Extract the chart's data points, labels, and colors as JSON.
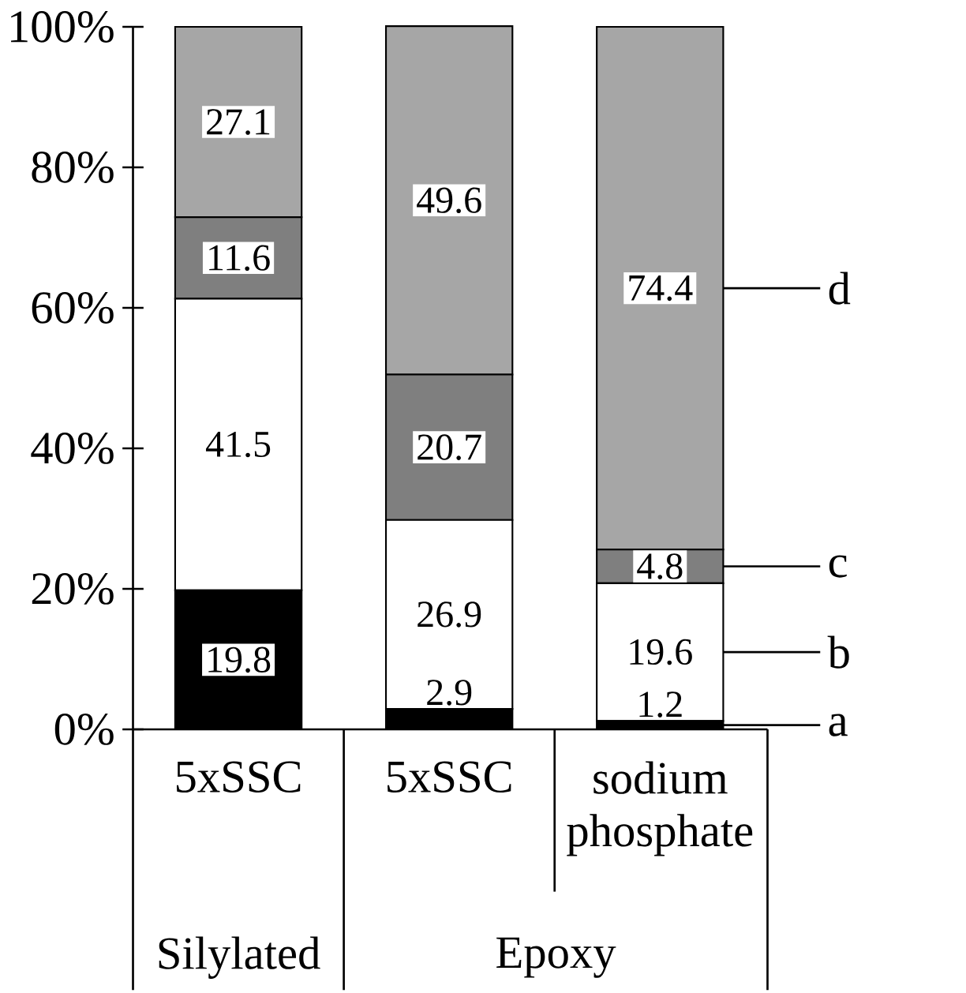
{
  "chart_data": {
    "type": "bar",
    "stacked": true,
    "data_labels": true,
    "categories": [
      "5xSSC",
      "5xSSC",
      "sodium phosphate"
    ],
    "series": [
      {
        "name": "a",
        "color": "#000000",
        "values": [
          19.8,
          2.9,
          1.2
        ]
      },
      {
        "name": "b",
        "color": "#ffffff",
        "values": [
          41.5,
          26.9,
          19.6
        ]
      },
      {
        "name": "c",
        "color": "#7f7f7f",
        "values": [
          11.6,
          20.7,
          4.8
        ]
      },
      {
        "name": "d",
        "color": "#a6a6a6",
        "values": [
          27.1,
          49.6,
          74.4
        ]
      }
    ],
    "ylim": [
      0,
      100
    ],
    "yticks": [
      {
        "value": 0,
        "label": "0%"
      },
      {
        "value": 20,
        "label": "20%"
      },
      {
        "value": 40,
        "label": "40%"
      },
      {
        "value": 60,
        "label": "60%"
      },
      {
        "value": 80,
        "label": "80%"
      },
      {
        "value": 100,
        "label": "100%"
      }
    ],
    "annotations": [
      "Silylated",
      "Epoxy"
    ],
    "grid": false,
    "legend": "right"
  }
}
